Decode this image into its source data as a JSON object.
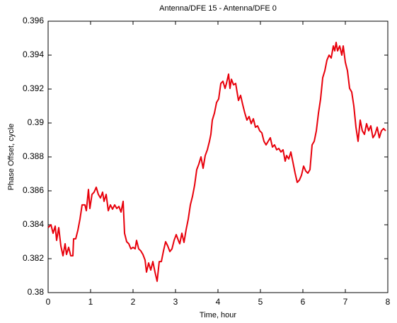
{
  "chart_data": {
    "type": "line",
    "title": "Antenna/DFE 15 - Antenna/DFE 0",
    "x_label": "Time,  hour",
    "y_label": "Phase Offset, cycle",
    "xlim": [
      0,
      8
    ],
    "xticks": [
      0,
      1,
      2,
      3,
      4,
      5,
      6,
      7,
      8
    ],
    "ylim": [
      0.38,
      0.396
    ],
    "yticks": [
      0.38,
      0.382,
      0.384,
      0.386,
      0.388,
      0.39,
      0.392,
      0.394,
      0.396
    ],
    "grid": false,
    "series": [
      {
        "color": "#e8000b",
        "x": [
          0,
          0.067,
          0.117,
          0.167,
          0.2,
          0.25,
          0.3,
          0.35,
          0.4,
          0.433,
          0.483,
          0.533,
          0.583,
          0.6,
          0.65,
          0.7,
          0.75,
          0.8,
          0.867,
          0.9,
          0.95,
          0.983,
          1.033,
          1.083,
          1.133,
          1.183,
          1.233,
          1.283,
          1.317,
          1.367,
          1.417,
          1.467,
          1.517,
          1.567,
          1.617,
          1.667,
          1.717,
          1.767,
          1.8,
          1.85,
          1.9,
          1.95,
          2.0,
          2.05,
          2.083,
          2.133,
          2.183,
          2.233,
          2.283,
          2.317,
          2.367,
          2.417,
          2.467,
          2.517,
          2.567,
          2.617,
          2.667,
          2.717,
          2.767,
          2.817,
          2.867,
          2.917,
          2.967,
          3.017,
          3.067,
          3.1,
          3.15,
          3.2,
          3.25,
          3.3,
          3.35,
          3.4,
          3.45,
          3.5,
          3.55,
          3.6,
          3.65,
          3.7,
          3.75,
          3.8,
          3.833,
          3.867,
          3.917,
          3.967,
          4.017,
          4.067,
          4.117,
          4.167,
          4.2,
          4.25,
          4.283,
          4.317,
          4.367,
          4.417,
          4.45,
          4.483,
          4.533,
          4.583,
          4.633,
          4.683,
          4.733,
          4.783,
          4.833,
          4.883,
          4.933,
          4.983,
          5.033,
          5.083,
          5.133,
          5.183,
          5.233,
          5.283,
          5.333,
          5.383,
          5.433,
          5.483,
          5.533,
          5.583,
          5.617,
          5.667,
          5.717,
          5.767,
          5.817,
          5.867,
          5.917,
          5.967,
          6.017,
          6.067,
          6.117,
          6.167,
          6.217,
          6.267,
          6.317,
          6.367,
          6.417,
          6.467,
          6.517,
          6.567,
          6.617,
          6.667,
          6.717,
          6.75,
          6.783,
          6.817,
          6.867,
          6.917,
          6.95,
          7.0,
          7.05,
          7.1,
          7.15,
          7.2,
          7.25,
          7.3,
          7.35,
          7.4,
          7.45,
          7.5,
          7.55,
          7.6,
          7.65,
          7.7,
          7.75,
          7.8,
          7.85,
          7.9,
          7.95
        ],
        "values": [
          0.38383,
          0.384,
          0.3835,
          0.38392,
          0.38308,
          0.38383,
          0.38275,
          0.38217,
          0.38288,
          0.38225,
          0.38267,
          0.38217,
          0.38217,
          0.38317,
          0.38317,
          0.38367,
          0.38433,
          0.38517,
          0.38517,
          0.38483,
          0.38608,
          0.38496,
          0.38579,
          0.38592,
          0.38621,
          0.38579,
          0.38558,
          0.38592,
          0.38538,
          0.38579,
          0.38483,
          0.38517,
          0.38492,
          0.38517,
          0.38496,
          0.38508,
          0.38475,
          0.38538,
          0.3835,
          0.383,
          0.38288,
          0.38258,
          0.38267,
          0.38258,
          0.38308,
          0.38258,
          0.38246,
          0.38225,
          0.38192,
          0.38121,
          0.38175,
          0.38133,
          0.38183,
          0.38121,
          0.38067,
          0.38183,
          0.38183,
          0.38246,
          0.383,
          0.38275,
          0.38242,
          0.38258,
          0.38308,
          0.38342,
          0.38308,
          0.38288,
          0.3835,
          0.38296,
          0.38371,
          0.38433,
          0.38517,
          0.38567,
          0.38633,
          0.38725,
          0.38758,
          0.388,
          0.38733,
          0.38808,
          0.38842,
          0.38892,
          0.38933,
          0.39017,
          0.39058,
          0.39121,
          0.39142,
          0.39233,
          0.39246,
          0.39204,
          0.39233,
          0.39288,
          0.39204,
          0.39258,
          0.39225,
          0.39233,
          0.39183,
          0.39133,
          0.39163,
          0.39108,
          0.39058,
          0.39017,
          0.39038,
          0.38996,
          0.39025,
          0.38975,
          0.38983,
          0.38954,
          0.38942,
          0.38892,
          0.38871,
          0.38892,
          0.38913,
          0.38858,
          0.38871,
          0.38842,
          0.3885,
          0.38829,
          0.38842,
          0.38775,
          0.38808,
          0.38788,
          0.38829,
          0.38767,
          0.38704,
          0.3865,
          0.38663,
          0.38692,
          0.38746,
          0.38717,
          0.38704,
          0.38725,
          0.38871,
          0.38892,
          0.38954,
          0.39058,
          0.39142,
          0.39267,
          0.39308,
          0.39371,
          0.394,
          0.39383,
          0.39454,
          0.39425,
          0.39475,
          0.39425,
          0.39454,
          0.394,
          0.39454,
          0.39358,
          0.39308,
          0.39204,
          0.39183,
          0.391,
          0.38975,
          0.38892,
          0.39017,
          0.38954,
          0.38933,
          0.38996,
          0.38954,
          0.38983,
          0.38913,
          0.38933,
          0.38975,
          0.38913,
          0.38954,
          0.38967,
          0.38954
        ]
      }
    ]
  }
}
